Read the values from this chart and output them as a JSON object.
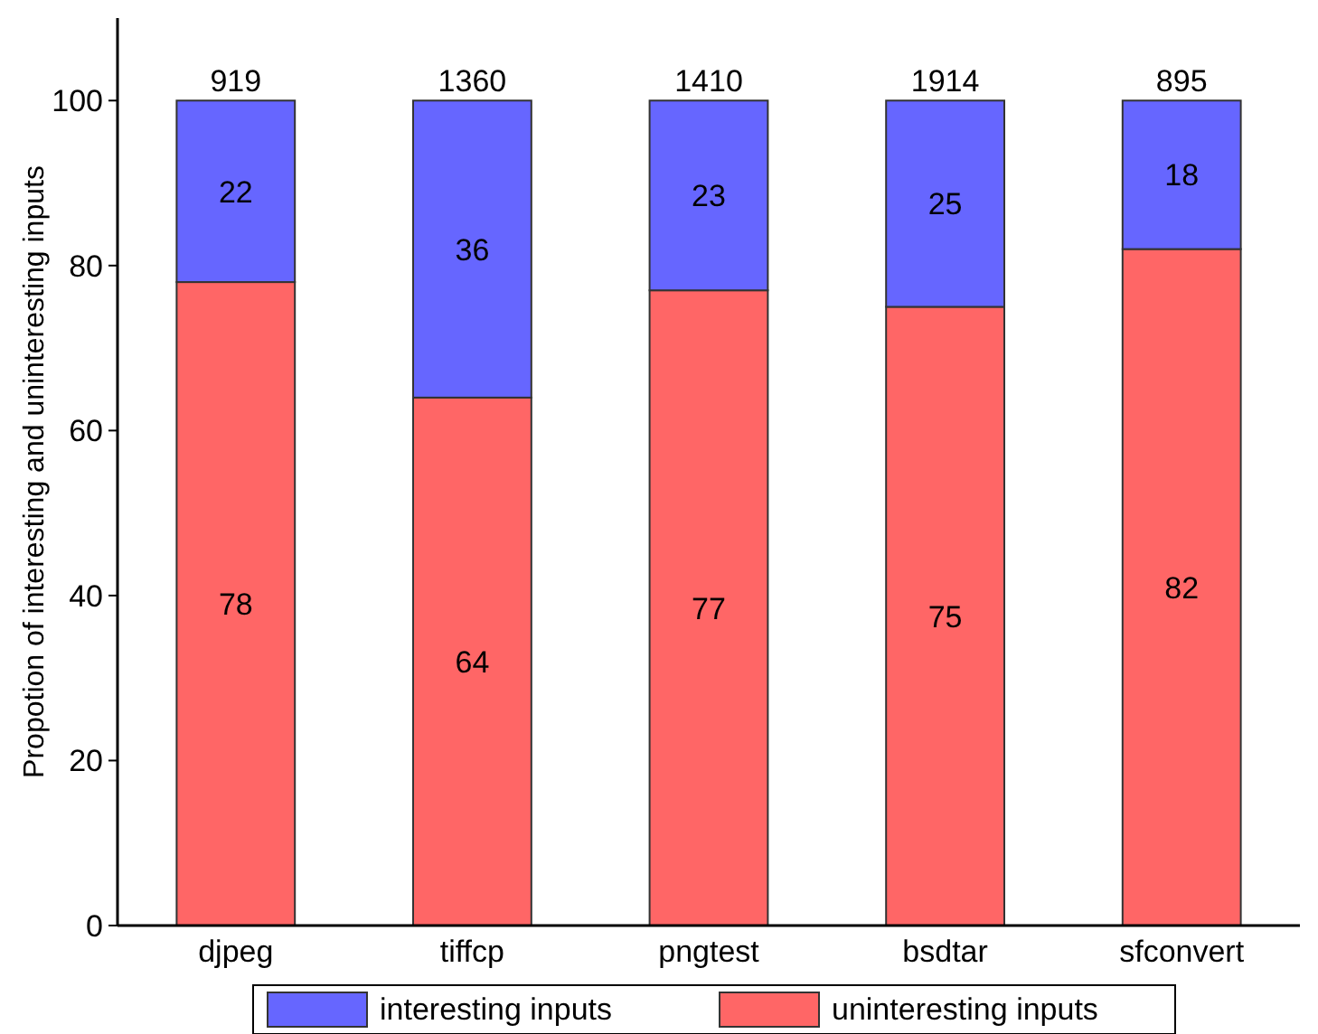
{
  "chart_data": {
    "type": "bar",
    "stacked": true,
    "ylabel": "Propotion of interesting and uninteresting inputs",
    "categories": [
      "djpeg",
      "tiffcp",
      "pngtest",
      "bsdtar",
      "sfconvert"
    ],
    "series": [
      {
        "name": "uninteresting inputs",
        "color": "#ff6666",
        "values": [
          78,
          64,
          77,
          75,
          82
        ]
      },
      {
        "name": "interesting inputs",
        "color": "#6666ff",
        "values": [
          22,
          36,
          23,
          25,
          18
        ]
      }
    ],
    "annotations": [
      {
        "text": "919",
        "x": "djpeg",
        "y": 100
      },
      {
        "text": "1360",
        "x": "tiffcp",
        "y": 100
      },
      {
        "text": "1410",
        "x": "pngtest",
        "y": 100
      },
      {
        "text": "1914",
        "x": "bsdtar",
        "y": 100
      },
      {
        "text": "895",
        "x": "sfconvert",
        "y": 100
      }
    ],
    "data_labels": true,
    "ylim": [
      0,
      110
    ],
    "yticks": [
      0,
      20,
      40,
      60,
      80,
      100
    ],
    "grid": false,
    "legend": "bottom"
  }
}
